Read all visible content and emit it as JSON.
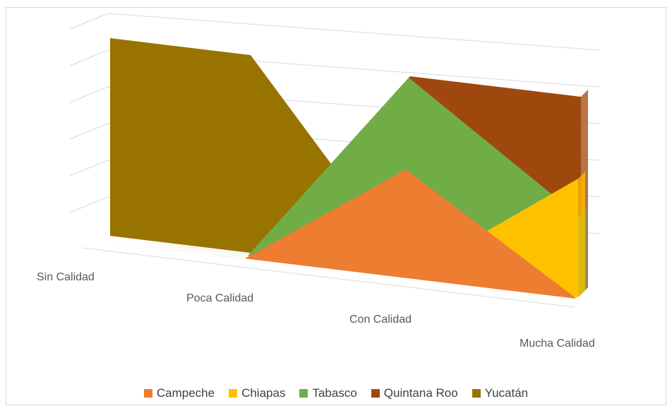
{
  "chart_data": {
    "type": "area",
    "variant": "3d-area",
    "title": "",
    "categories": [
      "Sin Calidad",
      "Poca Calidad",
      "Con Calidad",
      "Mucha Calidad"
    ],
    "series": [
      {
        "name": "Campeche",
        "values": [
          0,
          0,
          0.55,
          0
        ],
        "color": "#ED7D31"
      },
      {
        "name": "Chiapas",
        "values": [
          0,
          0,
          0,
          0.6
        ],
        "color": "#FFC000"
      },
      {
        "name": "Tabasco",
        "values": [
          0,
          0,
          1.0,
          0.4
        ],
        "color": "#70AD47"
      },
      {
        "name": "Quintana Roo",
        "values": [
          0,
          0,
          1.0,
          1.0
        ],
        "color": "#9E480E"
      },
      {
        "name": "Yucatán",
        "values": [
          1.0,
          1.0,
          0,
          0
        ],
        "color": "#997300"
      }
    ],
    "value_axis_labels_shown": false,
    "grid": true,
    "legend_position": "bottom"
  }
}
